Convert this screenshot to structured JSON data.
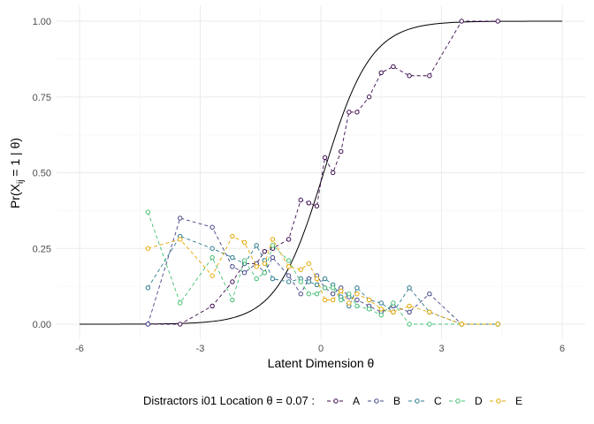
{
  "chart_data": {
    "type": "line",
    "xlabel": "Latent Dimension θ",
    "ylabel_prefix": "Pr(X",
    "ylabel_sub": "ij",
    "ylabel_suffix": " = 1 | θ)",
    "xlim": [
      -6,
      6
    ],
    "ylim": [
      0,
      1
    ],
    "x_ticks": [
      -6,
      -3,
      0,
      3,
      6
    ],
    "x_tick_labels": [
      "-6",
      "-3",
      "0",
      "3",
      "6"
    ],
    "y_ticks": [
      0,
      0.25,
      0.5,
      0.75,
      1
    ],
    "y_tick_labels": [
      "0.00",
      "0.25",
      "0.50",
      "0.75",
      "1.00"
    ],
    "grid": true,
    "legend_position": "bottom",
    "legend_title": "Distractors i01 Location  θ = 0.07 :",
    "icc": {
      "a": 1.7,
      "b": 0.07,
      "color": "#000000"
    },
    "series": [
      {
        "name": "A",
        "color": "#3b0a4f",
        "x": [
          -4.3,
          -3.5,
          -2.7,
          -2.2,
          -1.9,
          -1.6,
          -1.4,
          -1.2,
          -0.8,
          -0.5,
          -0.3,
          -0.1,
          0.1,
          0.3,
          0.5,
          0.7,
          0.9,
          1.2,
          1.5,
          1.8,
          2.2,
          2.7,
          3.5,
          4.4
        ],
        "y": [
          0.0,
          0.0,
          0.06,
          0.14,
          0.2,
          0.2,
          0.24,
          0.25,
          0.28,
          0.41,
          0.4,
          0.39,
          0.55,
          0.5,
          0.57,
          0.7,
          0.7,
          0.75,
          0.83,
          0.85,
          0.82,
          0.82,
          1.0,
          1.0
        ]
      },
      {
        "name": "B",
        "color": "#414487",
        "x": [
          -4.3,
          -3.5,
          -2.7,
          -2.2,
          -1.9,
          -1.6,
          -1.4,
          -1.2,
          -0.8,
          -0.5,
          -0.3,
          -0.1,
          0.1,
          0.3,
          0.5,
          0.7,
          0.9,
          1.2,
          1.5,
          1.8,
          2.2,
          2.7,
          3.5,
          4.4
        ],
        "y": [
          0.0,
          0.35,
          0.32,
          0.19,
          0.17,
          0.2,
          0.17,
          0.22,
          0.16,
          0.1,
          0.15,
          0.16,
          0.12,
          0.1,
          0.12,
          0.09,
          0.08,
          0.06,
          0.04,
          0.06,
          0.04,
          0.1,
          0.0,
          0.0
        ]
      },
      {
        "name": "C",
        "color": "#2a788e",
        "x": [
          -4.3,
          -3.5,
          -2.7,
          -2.2,
          -1.9,
          -1.6,
          -1.4,
          -1.2,
          -0.8,
          -0.5,
          -0.3,
          -0.1,
          0.1,
          0.3,
          0.5,
          0.7,
          0.9,
          1.2,
          1.5,
          1.8,
          2.2,
          2.7,
          3.5,
          4.4
        ],
        "y": [
          0.12,
          0.29,
          0.25,
          0.22,
          0.2,
          0.26,
          0.21,
          0.15,
          0.14,
          0.15,
          0.14,
          0.13,
          0.15,
          0.13,
          0.09,
          0.06,
          0.12,
          0.08,
          0.07,
          0.04,
          0.12,
          0.04,
          0.0,
          0.0
        ]
      },
      {
        "name": "D",
        "color": "#43bf71",
        "x": [
          -4.3,
          -3.5,
          -2.7,
          -2.2,
          -1.9,
          -1.6,
          -1.4,
          -1.2,
          -0.8,
          -0.5,
          -0.3,
          -0.1,
          0.1,
          0.3,
          0.5,
          0.7,
          0.9,
          1.2,
          1.5,
          1.8,
          2.2,
          2.7,
          3.5,
          4.4
        ],
        "y": [
          0.37,
          0.07,
          0.22,
          0.08,
          0.21,
          0.15,
          0.17,
          0.26,
          0.21,
          0.14,
          0.1,
          0.1,
          0.12,
          0.12,
          0.08,
          0.1,
          0.06,
          0.05,
          0.03,
          0.07,
          0.0,
          0.0,
          0.0,
          0.0
        ]
      },
      {
        "name": "E",
        "color": "#e6a700",
        "x": [
          -4.3,
          -3.5,
          -2.7,
          -2.2,
          -1.9,
          -1.6,
          -1.4,
          -1.2,
          -0.8,
          -0.5,
          -0.3,
          -0.1,
          0.1,
          0.3,
          0.5,
          0.7,
          0.9,
          1.2,
          1.5,
          1.8,
          2.2,
          2.7,
          3.5,
          4.4
        ],
        "y": [
          0.25,
          0.28,
          0.16,
          0.29,
          0.27,
          0.19,
          0.2,
          0.28,
          0.19,
          0.18,
          0.2,
          0.15,
          0.08,
          0.08,
          0.11,
          0.07,
          0.1,
          0.08,
          0.05,
          0.04,
          0.06,
          0.04,
          0.0,
          0.0
        ]
      }
    ]
  }
}
